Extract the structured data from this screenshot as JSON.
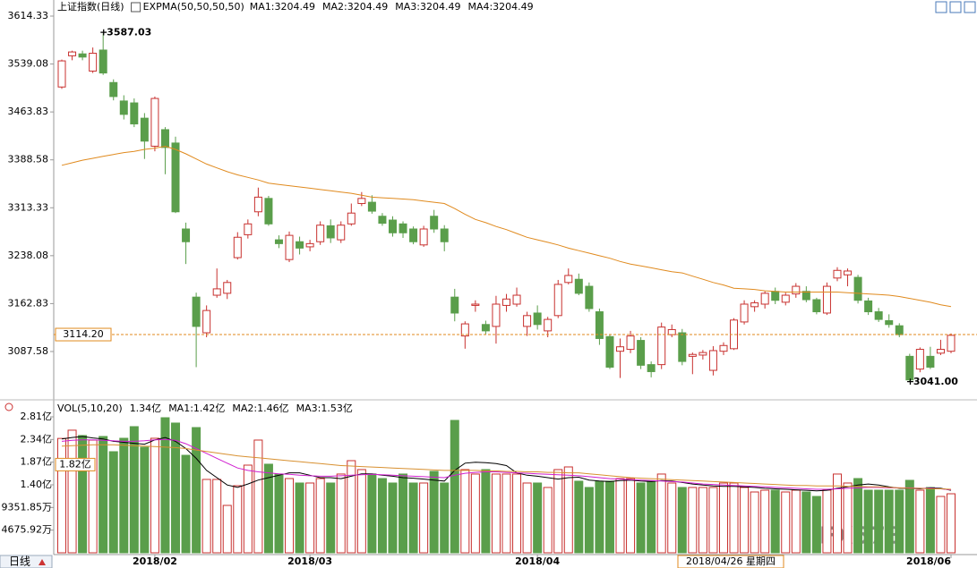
{
  "chart_data": [
    {
      "type": "candlestick",
      "title": "上证指数(日线)",
      "indicator": "EXPMA(50,50,50,50)",
      "legend": [
        {
          "label": "MA1:3204.49",
          "color": "#000000"
        },
        {
          "label": "MA2:3204.49",
          "color": "#000000"
        },
        {
          "label": "MA3:3204.49",
          "color": "#d020d0"
        },
        {
          "label": "MA4:3204.49",
          "color": "#d89030"
        }
      ],
      "categories": [
        null,
        null,
        null,
        null,
        null,
        null,
        null,
        null,
        null,
        "2018/02",
        null,
        null,
        null,
        null,
        null,
        null,
        null,
        null,
        null,
        null,
        null,
        null,
        null,
        null,
        "2018/03",
        null,
        null,
        null,
        null,
        null,
        null,
        null,
        null,
        null,
        null,
        null,
        null,
        null,
        null,
        null,
        null,
        null,
        null,
        null,
        null,
        null,
        "2018/04",
        null,
        null,
        null,
        null,
        null,
        null,
        null,
        null,
        null,
        null,
        null,
        null,
        null,
        null,
        null,
        null,
        null,
        null,
        null,
        null,
        null,
        null,
        null,
        null,
        null,
        null,
        null,
        null,
        null,
        null,
        null,
        null,
        null,
        null,
        null,
        null,
        null,
        null,
        null,
        "2018/06"
      ],
      "open": [
        3503,
        3552,
        3555,
        3528,
        3561,
        3510,
        3481,
        3478,
        3454,
        3410,
        3436,
        3415,
        3280,
        3173,
        3117,
        3176,
        3179,
        3235,
        3271,
        3307,
        3328,
        3263,
        3232,
        3260,
        3252,
        3260,
        3285,
        3263,
        3288,
        3320,
        3322,
        3300,
        3294,
        3288,
        3280,
        3255,
        3300,
        3280,
        3173,
        3112,
        3160,
        3130,
        3127,
        3160,
        3162,
        3127,
        3148,
        3120,
        3144,
        3196,
        3201,
        3190,
        3150,
        3111,
        3088,
        3091,
        3105,
        3067,
        3067,
        3114,
        3117,
        3080,
        3082,
        3058,
        3088,
        3092,
        3134,
        3158,
        3162,
        3182,
        3165,
        3178,
        3182,
        3169,
        3148,
        3203,
        3208,
        3204,
        3167,
        3150,
        3136,
        3128,
        3080,
        3060,
        3080,
        3085,
        3088
      ],
      "high": [
        3546,
        3560,
        3560,
        3565,
        3587.03,
        3515,
        3490,
        3485,
        3462,
        3488,
        3440,
        3425,
        3290,
        3180,
        3160,
        3218,
        3200,
        3275,
        3295,
        3345,
        3332,
        3270,
        3276,
        3268,
        3263,
        3292,
        3295,
        3292,
        3320,
        3338,
        3333,
        3305,
        3300,
        3292,
        3284,
        3285,
        3310,
        3286,
        3186,
        3135,
        3168,
        3136,
        3175,
        3178,
        3188,
        3150,
        3160,
        3142,
        3200,
        3218,
        3210,
        3196,
        3155,
        3115,
        3108,
        3120,
        3110,
        3072,
        3133,
        3130,
        3123,
        3086,
        3090,
        3096,
        3102,
        3140,
        3168,
        3168,
        3182,
        3188,
        3180,
        3195,
        3190,
        3172,
        3196,
        3220,
        3218,
        3208,
        3172,
        3156,
        3146,
        3132,
        3084,
        3094,
        3095,
        3106,
        3116
      ],
      "low": [
        3500,
        3545,
        3545,
        3525,
        3522,
        3482,
        3452,
        3440,
        3390,
        3402,
        3366,
        3305,
        3225,
        3063,
        3110,
        3172,
        3170,
        3232,
        3265,
        3300,
        3285,
        3250,
        3228,
        3240,
        3245,
        3255,
        3258,
        3258,
        3285,
        3316,
        3304,
        3285,
        3268,
        3266,
        3256,
        3252,
        3274,
        3245,
        3135,
        3092,
        3150,
        3115,
        3100,
        3150,
        3158,
        3112,
        3122,
        3110,
        3140,
        3193,
        3176,
        3150,
        3098,
        3060,
        3046,
        3085,
        3060,
        3047,
        3060,
        3110,
        3066,
        3052,
        3075,
        3050,
        3082,
        3090,
        3130,
        3150,
        3155,
        3162,
        3160,
        3172,
        3165,
        3146,
        3145,
        3198,
        3190,
        3163,
        3145,
        3134,
        3125,
        3110,
        3041,
        3055,
        3060,
        3082,
        3085
      ],
      "close": [
        3544,
        3558,
        3550,
        3556,
        3525,
        3488,
        3460,
        3445,
        3418,
        3485,
        3408,
        3307,
        3260,
        3127,
        3152,
        3186,
        3196,
        3267,
        3288,
        3330,
        3288,
        3257,
        3270,
        3250,
        3257,
        3286,
        3266,
        3286,
        3305,
        3328,
        3308,
        3289,
        3274,
        3274,
        3260,
        3280,
        3280,
        3260,
        3148,
        3131,
        3162,
        3120,
        3162,
        3170,
        3176,
        3144,
        3130,
        3138,
        3193,
        3207,
        3179,
        3155,
        3108,
        3063,
        3095,
        3112,
        3066,
        3056,
        3126,
        3122,
        3072,
        3083,
        3086,
        3089,
        3097,
        3137,
        3162,
        3164,
        3179,
        3168,
        3176,
        3190,
        3169,
        3150,
        3190,
        3215,
        3214,
        3168,
        3150,
        3138,
        3130,
        3114,
        3043,
        3091,
        3063,
        3091,
        3113
      ],
      "up_color": "#c8312f",
      "down_color": "#5a9e4b",
      "line": {
        "color": "#e08a1e",
        "values": [
          3380,
          3384,
          3388,
          3391,
          3394,
          3397,
          3400,
          3402,
          3405,
          3407,
          3410,
          3405,
          3398,
          3390,
          3382,
          3376,
          3370,
          3365,
          3361,
          3357,
          3352,
          3350,
          3348,
          3346,
          3344,
          3342,
          3340,
          3338,
          3336,
          3333,
          3330,
          3329,
          3328,
          3327,
          3326,
          3324,
          3322,
          3320,
          3312,
          3303,
          3295,
          3290,
          3284,
          3279,
          3273,
          3267,
          3263,
          3259,
          3255,
          3250,
          3246,
          3242,
          3238,
          3234,
          3229,
          3225,
          3222,
          3219,
          3216,
          3213,
          3211,
          3206,
          3201,
          3196,
          3192,
          3187,
          3186,
          3185,
          3183,
          3182,
          3181,
          3181,
          3181,
          3181,
          3181,
          3181,
          3180,
          3179,
          3178,
          3177,
          3176,
          3174,
          3171,
          3168,
          3165,
          3161,
          3158
        ]
      },
      "low_label": "3041.00",
      "ylim": [
        3014.5,
        3614.33
      ],
      "yticks": [
        3087.58,
        3162.83,
        3238.08,
        3313.33,
        3388.58,
        3463.83,
        3539.08,
        3614.33
      ],
      "crosshair": {
        "value": 3114.2,
        "label": "3114.20",
        "date": "2018/04/26 星期四"
      }
    },
    {
      "type": "bar",
      "title": "VOL(5,10,20)",
      "current": "1.34亿",
      "period_button": "日线",
      "values": [
        23600,
        25300,
        24200,
        23250,
        24000,
        20860,
        23630,
        26030,
        21780,
        23630,
        27870,
        26770,
        20120,
        25840,
        15140,
        15140,
        9780,
        13840,
        18090,
        23260,
        18280,
        16250,
        15320,
        14400,
        14400,
        15320,
        14400,
        16250,
        19010,
        17170,
        16250,
        15320,
        14400,
        16250,
        14400,
        14400,
        16800,
        14400,
        27320,
        17170,
        16250,
        17170,
        16250,
        16250,
        16250,
        14400,
        14400,
        13480,
        17170,
        17720,
        14770,
        13480,
        14770,
        14770,
        15320,
        15320,
        14400,
        14770,
        16250,
        14400,
        13480,
        13480,
        13480,
        13480,
        14400,
        14400,
        13480,
        12550,
        12920,
        12920,
        12550,
        12920,
        12550,
        11630,
        12920,
        16250,
        14400,
        15320,
        12920,
        12920,
        12920,
        12920,
        14950,
        12920,
        13480,
        11630,
        12180
      ],
      "series": [
        {
          "name": "MA1:1.42亿",
          "color": "#000000",
          "values": [
            23500,
            23800,
            24000,
            23700,
            23500,
            23000,
            22800,
            22600,
            22400,
            23300,
            23800,
            23000,
            21500,
            19500,
            17000,
            15500,
            14000,
            13500,
            14200,
            15000,
            15500,
            16000,
            16500,
            16500,
            16000,
            15500,
            15500,
            15300,
            15800,
            16300,
            16300,
            16000,
            15800,
            15500,
            15400,
            15200,
            15000,
            14800,
            17000,
            18500,
            18700,
            18600,
            18400,
            18000,
            16500,
            16000,
            15800,
            15500,
            15200,
            15500,
            15600,
            15000,
            14800,
            14700,
            14900,
            15000,
            14800,
            14700,
            14900,
            14800,
            14500,
            14200,
            14000,
            13800,
            13700,
            13700,
            13600,
            13500,
            13300,
            13200,
            13100,
            13000,
            12900,
            12800,
            12900,
            13300,
            13600,
            14000,
            14200,
            14000,
            13600,
            13300,
            13300,
            13200,
            13400,
            13300,
            12900
          ]
        },
        {
          "name": "MA2:1.46亿",
          "color": "#d020d0",
          "values": [
            23000,
            23200,
            23300,
            23300,
            23200,
            23100,
            23000,
            23000,
            23100,
            23300,
            23400,
            23200,
            22500,
            21500,
            20500,
            19500,
            18500,
            17500,
            17000,
            16700,
            16500,
            16300,
            16200,
            16000,
            15900,
            15800,
            15800,
            15900,
            16000,
            16100,
            16200,
            16100,
            16000,
            15900,
            15800,
            15700,
            15600,
            15500,
            16000,
            16400,
            16600,
            16700,
            16700,
            16600,
            16500,
            16400,
            16300,
            16200,
            16100,
            16000,
            15900,
            15700,
            15500,
            15300,
            15200,
            15100,
            15000,
            14900,
            14800,
            14700,
            14600,
            14400,
            14200,
            14100,
            14000,
            13900,
            13800,
            13700,
            13600,
            13500,
            13400,
            13300,
            13200,
            13100,
            13100,
            13200,
            13300,
            13400,
            13500,
            13500,
            13400,
            13400,
            13400,
            13300,
            13300,
            13200,
            13000
          ]
        },
        {
          "name": "MA3:1.53亿",
          "color": "#d89030",
          "values": [
            22000,
            22100,
            22200,
            22300,
            22300,
            22300,
            22200,
            22100,
            22000,
            21900,
            21800,
            21700,
            21500,
            21200,
            20900,
            20600,
            20300,
            20000,
            19800,
            19600,
            19400,
            19200,
            19000,
            18800,
            18600,
            18400,
            18200,
            18000,
            17900,
            17800,
            17700,
            17600,
            17500,
            17400,
            17300,
            17200,
            17100,
            17000,
            17000,
            17000,
            17000,
            16900,
            16900,
            16800,
            16800,
            16700,
            16700,
            16600,
            16600,
            16500,
            16500,
            16300,
            16100,
            15900,
            15700,
            15500,
            15400,
            15300,
            15200,
            15100,
            15000,
            14900,
            14800,
            14700,
            14600,
            14500,
            14400,
            14300,
            14200,
            14100,
            14000,
            13900,
            13900,
            13800,
            13800,
            13800,
            13700,
            13700,
            13600,
            13600,
            13500,
            13400,
            13300,
            13300,
            13200,
            13200,
            13100
          ]
        }
      ],
      "ylim": [
        0,
        28055.52
      ],
      "yticks": [
        {
          "value": 4675.92,
          "label": "4675.92万"
        },
        {
          "value": 9351.85,
          "label": "9351.85万"
        },
        {
          "value": 14027.77,
          "label": "1.40亿"
        },
        {
          "value": 18703.7,
          "label": "1.87亿"
        },
        {
          "value": 23379.62,
          "label": "2.34亿"
        },
        {
          "value": 28055.52,
          "label": "2.81亿"
        }
      ],
      "crosshair": {
        "value": 18200,
        "label": "1.82亿"
      },
      "watermark": "FX678"
    }
  ]
}
